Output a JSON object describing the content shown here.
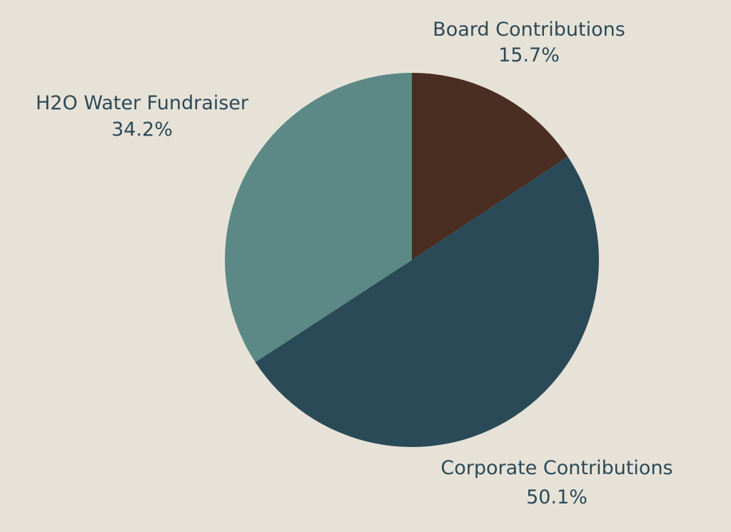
{
  "chart_data": {
    "type": "pie",
    "slices": [
      {
        "label": "Board Contributions",
        "value": 15.7,
        "percent_label": "15.7%",
        "color": "#4a2e22"
      },
      {
        "label": "Corporate Contributions",
        "value": 50.1,
        "percent_label": "50.1%",
        "color": "#2a4a58"
      },
      {
        "label": "H2O Water Fundraiser",
        "value": 34.2,
        "percent_label": "34.2%",
        "color": "#5c8985"
      }
    ],
    "label_color": "#2c4a57",
    "background": "#e7e2d8",
    "legend": "none"
  }
}
